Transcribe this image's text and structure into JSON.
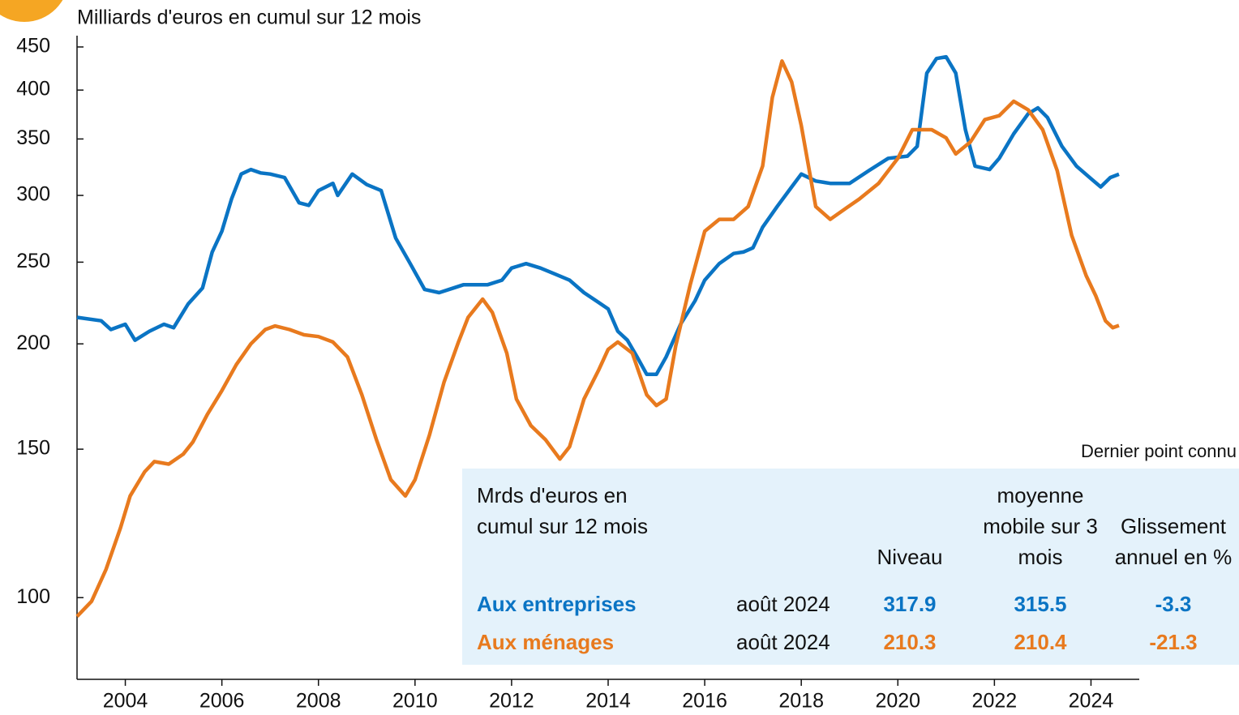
{
  "chart_data": {
    "type": "line",
    "title": "Milliards d'euros en cumul sur 12 mois",
    "log_scale": true,
    "xlim": [
      2003,
      2025
    ],
    "xticks": [
      2004,
      2006,
      2008,
      2010,
      2012,
      2014,
      2016,
      2018,
      2020,
      2022,
      2024
    ],
    "ylim": [
      80,
      460
    ],
    "yticks": [
      100,
      150,
      200,
      250,
      300,
      350,
      400,
      450
    ],
    "series": [
      {
        "name": "Aux entreprises",
        "color": "#0a74c4",
        "x": [
          2003.0,
          2003.5,
          2003.7,
          2004.0,
          2004.2,
          2004.5,
          2004.8,
          2005.0,
          2005.3,
          2005.6,
          2005.8,
          2006.0,
          2006.2,
          2006.4,
          2006.6,
          2006.8,
          2007.0,
          2007.3,
          2007.6,
          2007.8,
          2008.0,
          2008.3,
          2008.4,
          2008.7,
          2009.0,
          2009.3,
          2009.6,
          2009.9,
          2010.2,
          2010.5,
          2010.8,
          2011.0,
          2011.5,
          2011.8,
          2012.0,
          2012.3,
          2012.6,
          2012.9,
          2013.2,
          2013.5,
          2013.8,
          2014.0,
          2014.2,
          2014.4,
          2014.6,
          2014.8,
          2015.0,
          2015.2,
          2015.5,
          2015.8,
          2016.0,
          2016.3,
          2016.6,
          2016.8,
          2017.0,
          2017.2,
          2017.5,
          2017.8,
          2018.0,
          2018.3,
          2018.6,
          2019.0,
          2019.4,
          2019.8,
          2020.2,
          2020.4,
          2020.6,
          2020.8,
          2021.0,
          2021.2,
          2021.4,
          2021.6,
          2021.9,
          2022.1,
          2022.4,
          2022.7,
          2022.9,
          2023.1,
          2023.4,
          2023.7,
          2024.0,
          2024.2,
          2024.4,
          2024.58
        ],
        "values": [
          215,
          213,
          208,
          211,
          202,
          207,
          211,
          209,
          223,
          233,
          257,
          272,
          297,
          318,
          322,
          319,
          318,
          315,
          294,
          292,
          304,
          310,
          300,
          318,
          309,
          304,
          267,
          249,
          232,
          230,
          233,
          235,
          235,
          238,
          246,
          249,
          246,
          242,
          238,
          230,
          224,
          220,
          207,
          202,
          193,
          184,
          184,
          193,
          211,
          225,
          238,
          249,
          256,
          257,
          260,
          275,
          291,
          307,
          318,
          312,
          310,
          310,
          321,
          332,
          334,
          343,
          419,
          436,
          438,
          419,
          359,
          325,
          322,
          332,
          355,
          375,
          381,
          371,
          343,
          325,
          314,
          307,
          315,
          317.9
        ]
      },
      {
        "name": "Aux ménages",
        "color": "#e87a1e",
        "x": [
          2003.0,
          2003.3,
          2003.6,
          2003.9,
          2004.1,
          2004.4,
          2004.6,
          2004.9,
          2005.2,
          2005.4,
          2005.7,
          2006.0,
          2006.3,
          2006.6,
          2006.9,
          2007.1,
          2007.4,
          2007.7,
          2008.0,
          2008.3,
          2008.6,
          2008.9,
          2009.2,
          2009.5,
          2009.8,
          2010.0,
          2010.3,
          2010.6,
          2010.9,
          2011.1,
          2011.4,
          2011.6,
          2011.9,
          2012.1,
          2012.4,
          2012.7,
          2013.0,
          2013.2,
          2013.5,
          2013.8,
          2014.0,
          2014.2,
          2014.5,
          2014.8,
          2015.0,
          2015.2,
          2015.4,
          2015.7,
          2016.0,
          2016.3,
          2016.6,
          2016.9,
          2017.2,
          2017.4,
          2017.6,
          2017.8,
          2018.0,
          2018.3,
          2018.6,
          2018.9,
          2019.2,
          2019.6,
          2020.0,
          2020.3,
          2020.7,
          2021.0,
          2021.2,
          2021.5,
          2021.8,
          2022.1,
          2022.4,
          2022.7,
          2023.0,
          2023.3,
          2023.6,
          2023.9,
          2024.1,
          2024.3,
          2024.45,
          2024.58
        ],
        "values": [
          95,
          99,
          108,
          121,
          132,
          141,
          145,
          144,
          148,
          153,
          165,
          176,
          189,
          200,
          208,
          210,
          208,
          205,
          204,
          201,
          193,
          174,
          154,
          138,
          132,
          138,
          156,
          180,
          201,
          215,
          226,
          218,
          195,
          172,
          160,
          154,
          146,
          151,
          172,
          186,
          197,
          201,
          195,
          174,
          169,
          172,
          199,
          235,
          272,
          281,
          281,
          291,
          325,
          392,
          433,
          409,
          363,
          291,
          281,
          289,
          297,
          310,
          332,
          359,
          359,
          351,
          336,
          347,
          369,
          373,
          388,
          379,
          359,
          321,
          269,
          241,
          228,
          213,
          209,
          210.3
        ]
      }
    ]
  },
  "table": {
    "caption": "Dernier point connu",
    "label": "Mrds d'euros en cumul sur 12 mois",
    "columns": [
      "Niveau",
      "moyenne mobile sur 3 mois",
      "Glissement annuel en %"
    ],
    "rows": [
      {
        "name": "Aux entreprises",
        "date": "août 2024",
        "color": "#0a74c4",
        "values": [
          "317.9",
          "315.5",
          "-3.3"
        ]
      },
      {
        "name": "Aux ménages",
        "date": "août 2024",
        "color": "#e87a1e",
        "values": [
          "210.3",
          "210.4",
          "-21.3"
        ]
      }
    ]
  }
}
